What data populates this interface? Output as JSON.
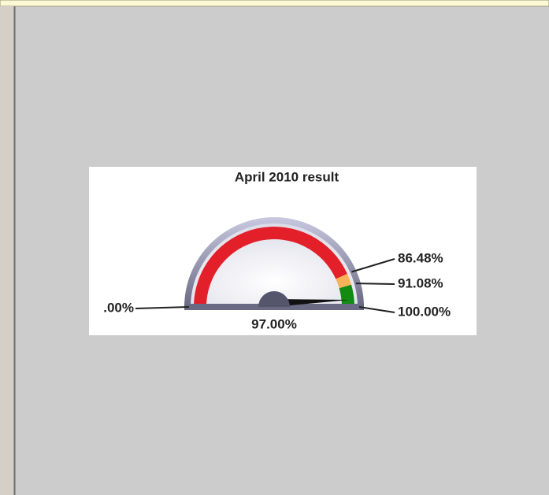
{
  "chart_data": {
    "type": "gauge",
    "title": "April 2010 result",
    "ylim": [
      0,
      100
    ],
    "yticks": [
      {
        "value": 0,
        "label": ".00%"
      },
      {
        "value": 86.48,
        "label": "86.48%"
      },
      {
        "value": 91.08,
        "label": "91.08%"
      },
      {
        "value": 100,
        "label": "100.00%"
      }
    ],
    "bands": [
      {
        "from": 0,
        "to": 86.48,
        "color": "#e3202a"
      },
      {
        "from": 86.48,
        "to": 91.08,
        "color": "#f8b257"
      },
      {
        "from": 91.08,
        "to": 100,
        "color": "#138a12"
      }
    ],
    "value": 97,
    "value_label": "97.00%"
  }
}
